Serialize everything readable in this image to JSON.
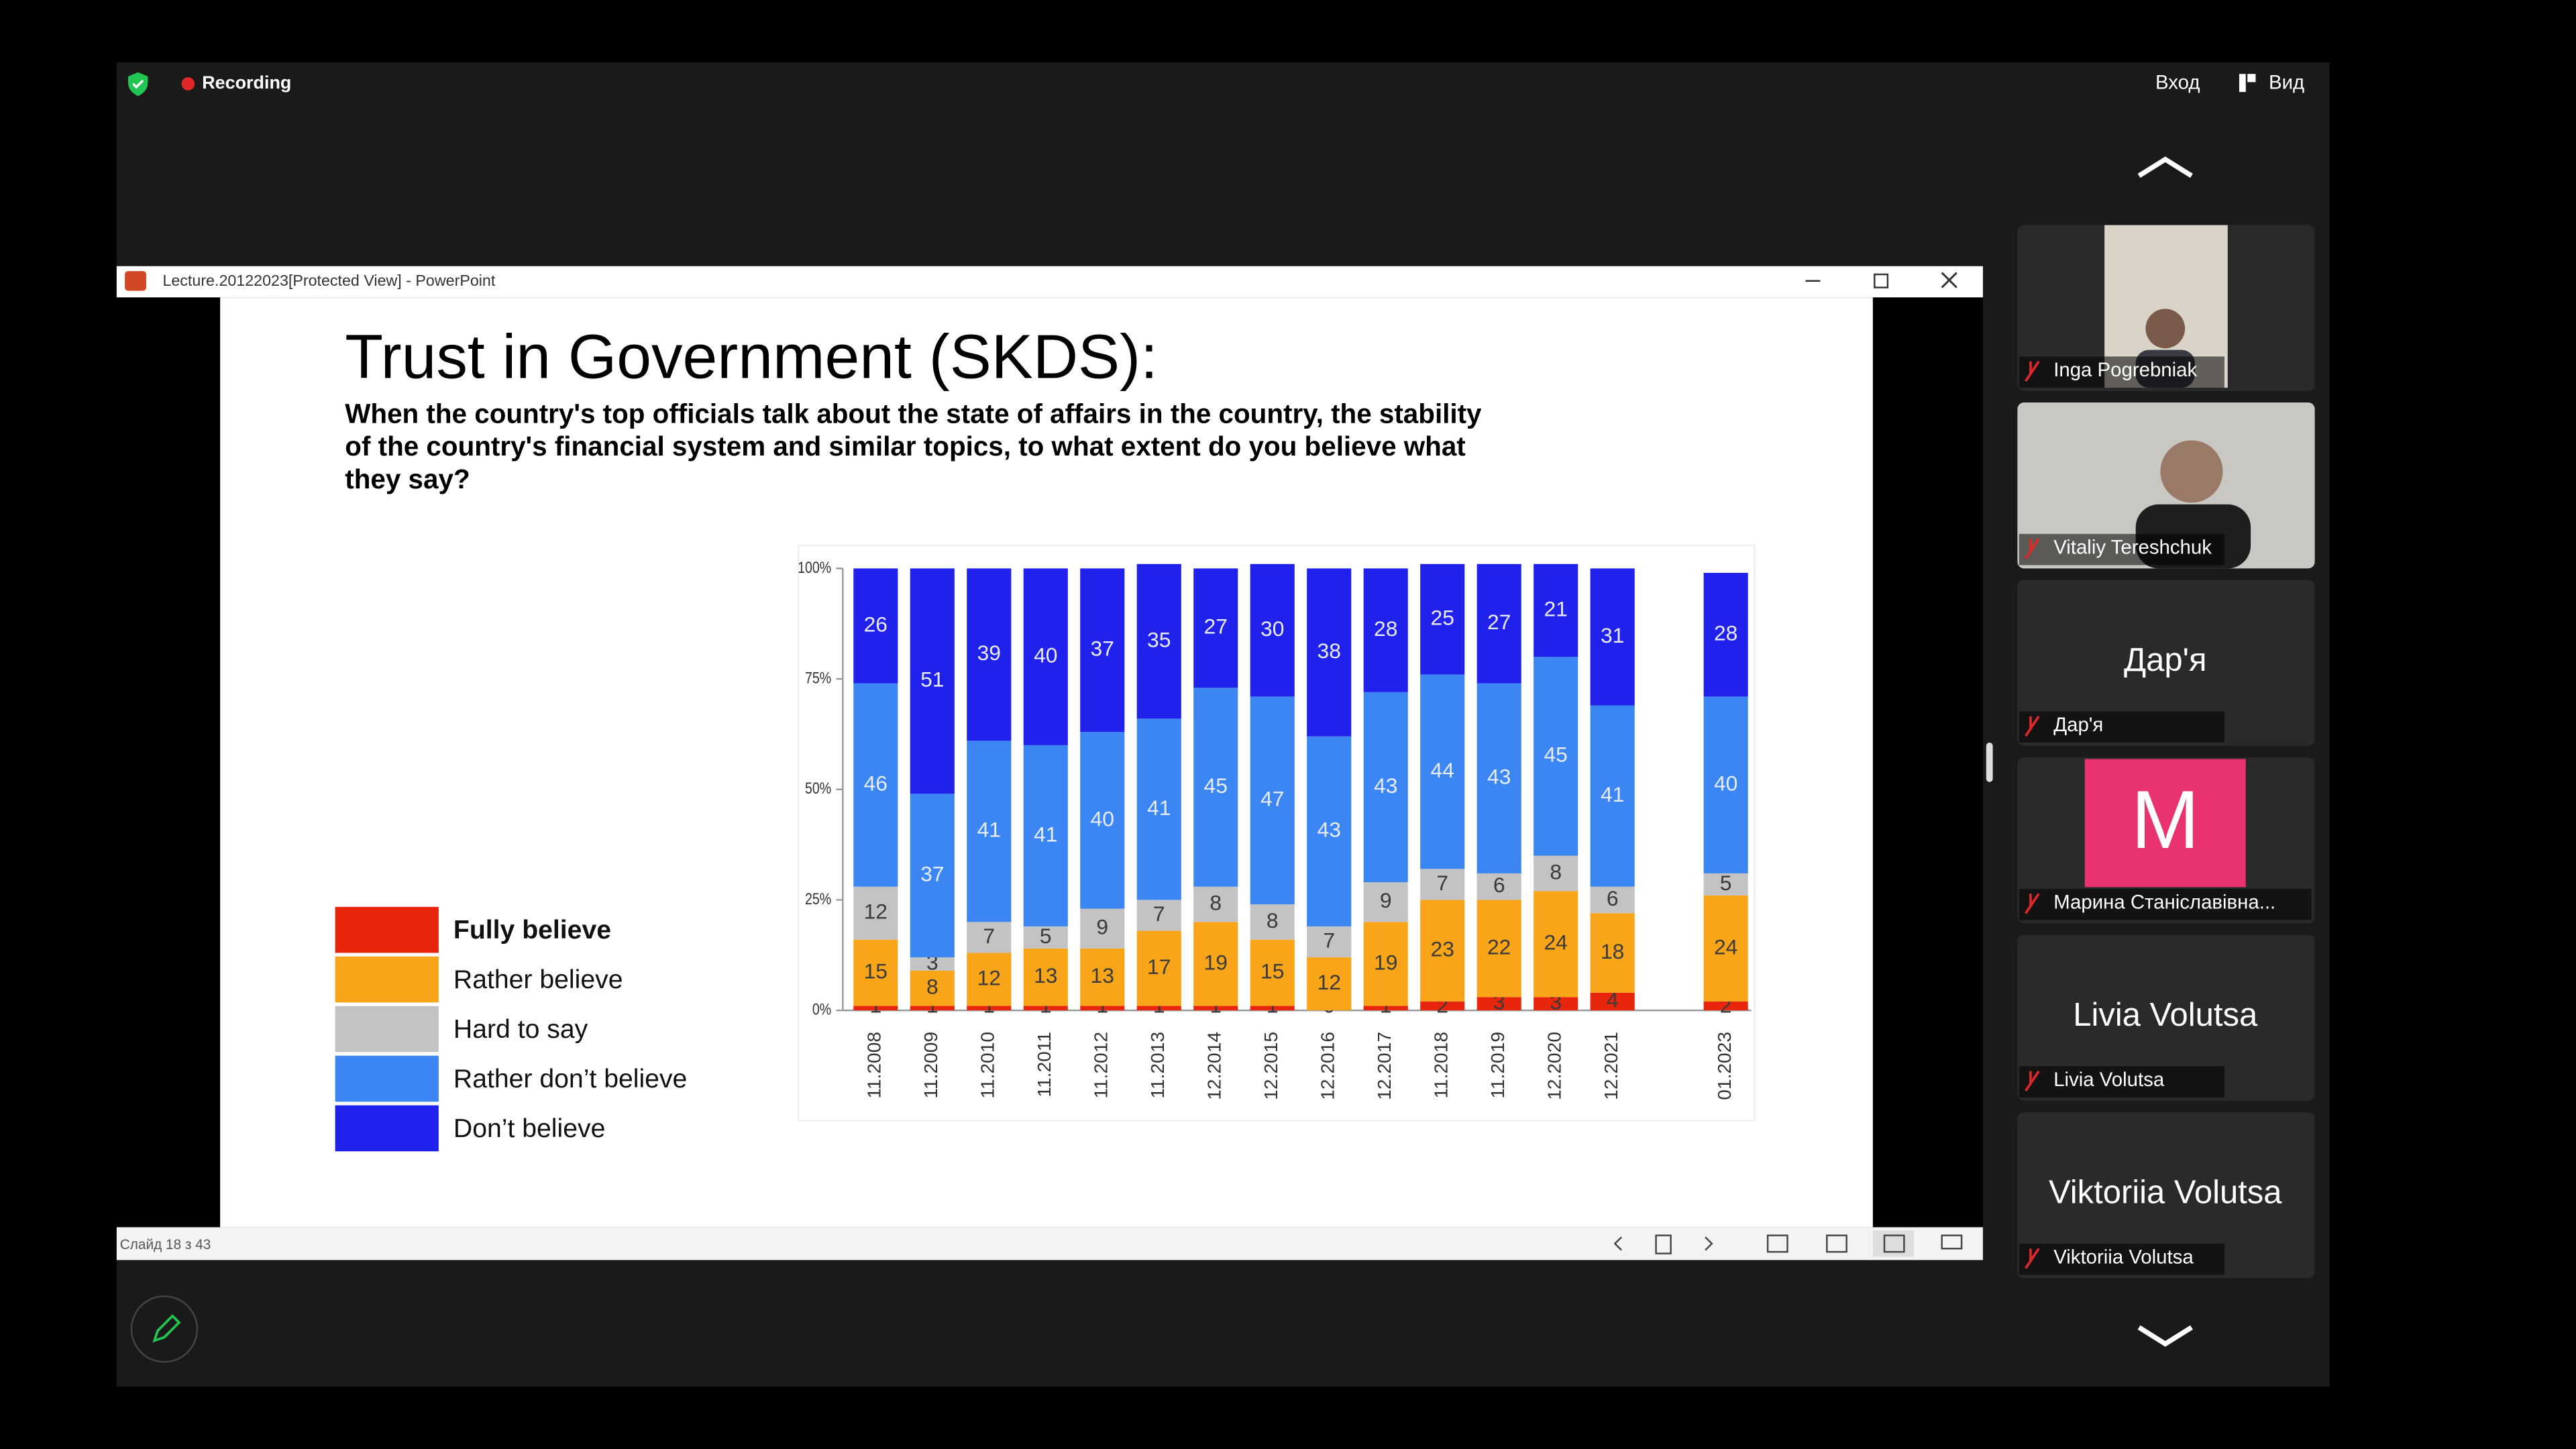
{
  "meeting": {
    "recording": "Recording",
    "enter": "Вход",
    "view": "Вид"
  },
  "window": {
    "title": "Lecture.20122023[Protected View] - PowerPoint",
    "status": "Слайд 18 з 43"
  },
  "slide": {
    "title": "Trust in Government (SKDS):",
    "subtitle_lines": [
      "When the country's top officials talk about the state of affairs in the country, the stability",
      "of the country's financial system and similar topics, to what extent do you believe what",
      "they say?"
    ]
  },
  "chart_data": {
    "type": "stacked-bar",
    "categories": [
      "11.2008",
      "11.2009",
      "11.2010",
      "11.2011",
      "11.2012",
      "11.2013",
      "12.2014",
      "12.2015",
      "12.2016",
      "12.2017",
      "11.2018",
      "11.2019",
      "12.2020",
      "12.2021",
      null,
      "01.2023"
    ],
    "series": [
      {
        "name": "Fully believe",
        "color": "#e8260e",
        "values": [
          1,
          1,
          1,
          1,
          1,
          1,
          1,
          1,
          0,
          1,
          2,
          3,
          3,
          4,
          null,
          2
        ]
      },
      {
        "name": "Rather believe",
        "color": "#f9a51a",
        "values": [
          15,
          8,
          12,
          13,
          13,
          17,
          19,
          15,
          12,
          19,
          23,
          22,
          24,
          18,
          null,
          24
        ]
      },
      {
        "name": "Hard to say",
        "color": "#c3c2c4",
        "values": [
          12,
          3,
          7,
          5,
          9,
          7,
          8,
          8,
          7,
          9,
          7,
          6,
          8,
          6,
          null,
          5
        ]
      },
      {
        "name": "Rather don’t believe",
        "color": "#3b86f2",
        "values": [
          46,
          37,
          41,
          41,
          40,
          41,
          45,
          47,
          43,
          43,
          44,
          43,
          45,
          41,
          null,
          40
        ]
      },
      {
        "name": "Don’t believe",
        "color": "#2121ec",
        "values": [
          26,
          51,
          39,
          40,
          37,
          35,
          27,
          30,
          38,
          28,
          25,
          27,
          21,
          31,
          null,
          28
        ]
      }
    ],
    "ylim": [
      0,
      100
    ],
    "yticks": [
      {
        "value": 0,
        "label": "0%"
      },
      {
        "value": 25,
        "label": "25%"
      },
      {
        "value": 50,
        "label": "50%"
      },
      {
        "value": 75,
        "label": "75%"
      },
      {
        "value": 100,
        "label": "100%"
      }
    ]
  },
  "participants": [
    {
      "name": "Inga Pogrebniak"
    },
    {
      "name": "Vitaliy Tereshchuk"
    },
    {
      "name": "Дар'я",
      "display": "Дар'я"
    },
    {
      "name": "Марина Станіславівна...",
      "avatar": "M"
    },
    {
      "name": "Livia Volutsa",
      "display": "Livia Volutsa"
    },
    {
      "name": "Viktoriia Volutsa",
      "display": "Viktoriia Volutsa"
    }
  ]
}
